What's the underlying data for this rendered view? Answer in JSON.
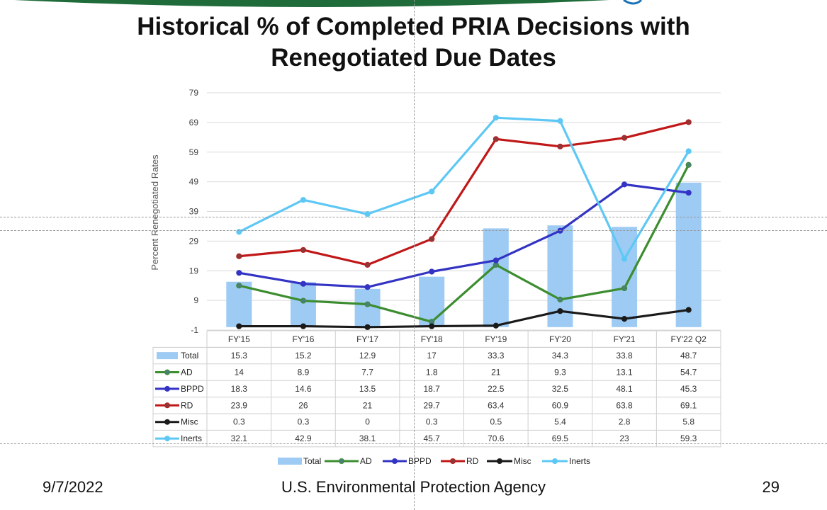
{
  "slide": {
    "title_line1": "Historical % of Completed PRIA Decisions with",
    "title_line2": "Renegotiated Due Dates",
    "date": "9/7/2022",
    "agency": "U.S. Environmental Protection Agency",
    "page_number": "29"
  },
  "chart_data": {
    "type": "bar",
    "ylabel": "Percent Renegotiated Rates",
    "ylim": [
      -1,
      79
    ],
    "yticks": [
      -1,
      9,
      19,
      29,
      39,
      49,
      59,
      69,
      79
    ],
    "grid": true,
    "legend_position": "bottom",
    "categories": [
      "FY'15",
      "FY'16",
      "FY'17",
      "FY'18",
      "FY'19",
      "FY'20",
      "FY'21",
      "FY'22 Q2"
    ],
    "series": [
      {
        "name": "Total",
        "kind": "bar",
        "color": "#9ecbf3",
        "values": [
          15.3,
          15.2,
          12.9,
          17,
          33.3,
          34.3,
          33.8,
          48.7
        ]
      },
      {
        "name": "AD",
        "kind": "line",
        "color": "#3c8d2f",
        "marker": "#4b7f7a",
        "values": [
          14,
          8.9,
          7.7,
          1.8,
          21,
          9.3,
          13.1,
          54.7
        ]
      },
      {
        "name": "BPPD",
        "kind": "line",
        "color": "#3333c4",
        "marker": "#3333c4",
        "values": [
          18.3,
          14.6,
          13.5,
          18.7,
          22.5,
          32.5,
          48.1,
          45.3
        ]
      },
      {
        "name": "RD",
        "kind": "line",
        "color": "#c01818",
        "marker": "#8a3a3a",
        "values": [
          23.9,
          26,
          21,
          29.7,
          63.4,
          60.9,
          63.8,
          69.1
        ]
      },
      {
        "name": "Misc",
        "kind": "line",
        "color": "#1a1a1a",
        "marker": "#1a1a1a",
        "values": [
          0.3,
          0.3,
          0,
          0.3,
          0.5,
          5.4,
          2.8,
          5.8
        ]
      },
      {
        "name": "Inerts",
        "kind": "line",
        "color": "#5ec8f5",
        "marker": "#5ec8f5",
        "values": [
          32.1,
          42.9,
          38.1,
          45.7,
          70.6,
          69.5,
          23,
          59.3
        ]
      }
    ],
    "table": [
      [
        "15.3",
        "15.2",
        "12.9",
        "17",
        "33.3",
        "34.3",
        "33.8",
        "48.7"
      ],
      [
        "14",
        "8.9",
        "7.7",
        "1.8",
        "21",
        "9.3",
        "13.1",
        "54.7"
      ],
      [
        "18.3",
        "14.6",
        "13.5",
        "18.7",
        "22.5",
        "32.5",
        "48.1",
        "45.3"
      ],
      [
        "23.9",
        "26",
        "21",
        "29.7",
        "63.4",
        "60.9",
        "63.8",
        "69.1"
      ],
      [
        "0.3",
        "0.3",
        "0",
        "0.3",
        "0.5",
        "5.4",
        "2.8",
        "5.8"
      ],
      [
        "32.1",
        "42.9",
        "38.1",
        "45.7",
        "70.6",
        "69.5",
        "23",
        "59.3"
      ]
    ]
  }
}
